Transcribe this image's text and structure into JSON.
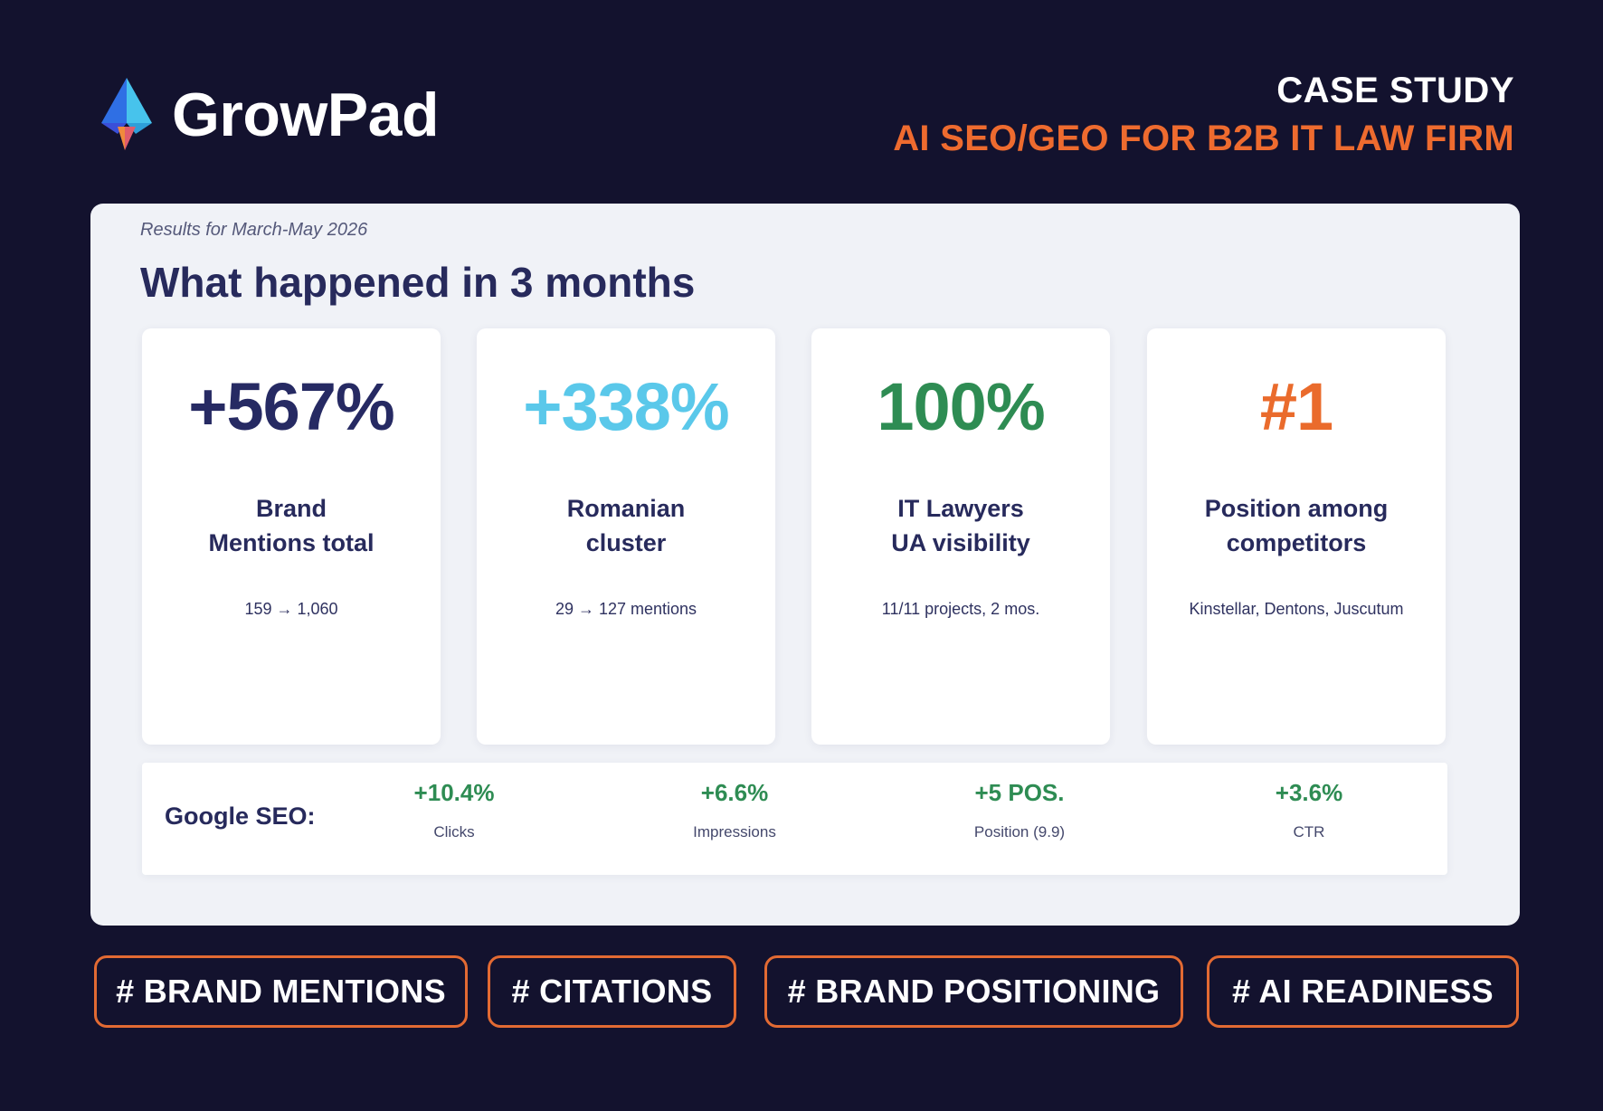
{
  "header": {
    "brand": "GrowPad",
    "case_label": "CASE STUDY",
    "case_title": "AI SEO/GEO FOR B2B IT LAW FIRM"
  },
  "panel": {
    "period": "Results for March-May 2026",
    "heading": "What happened in 3 months",
    "cards": [
      {
        "value": "+567%",
        "label_line1": "Brand",
        "label_line2": "Mentions total",
        "note": "159 → 1,060",
        "color": "#262a63"
      },
      {
        "value": "+338%",
        "label_line1": "Romanian",
        "label_line2": "cluster",
        "note": "29 → 127 mentions",
        "color": "#5ac8ea"
      },
      {
        "value": "100%",
        "label_line1": "IT Lawyers",
        "label_line2": "UA visibility",
        "note": "11/11 projects, 2 mos.",
        "color": "#2e8c53"
      },
      {
        "value": "#1",
        "label_line1": "Position among",
        "label_line2": "competitors",
        "note": "Kinstellar, Dentons, Juscutum",
        "color": "#ea6b2c"
      }
    ],
    "seo": {
      "label": "Google SEO:",
      "metrics": [
        {
          "value": "+10.4%",
          "label": "Clicks"
        },
        {
          "value": "+6.6%",
          "label": "Impressions"
        },
        {
          "value": "+5 POS.",
          "label": "Position (9.9)"
        },
        {
          "value": "+3.6%",
          "label": "CTR"
        }
      ]
    }
  },
  "tags": [
    "# BRAND MENTIONS",
    "# CITATIONS",
    "# BRAND POSITIONING",
    "# AI READINESS"
  ],
  "colors": {
    "background": "#13122e",
    "accent_orange": "#ee6b2f",
    "panel": "#f0f2f7",
    "positive_green": "#2e8c53"
  },
  "icons": {
    "logo": "growpad-triangle-logo-icon"
  }
}
